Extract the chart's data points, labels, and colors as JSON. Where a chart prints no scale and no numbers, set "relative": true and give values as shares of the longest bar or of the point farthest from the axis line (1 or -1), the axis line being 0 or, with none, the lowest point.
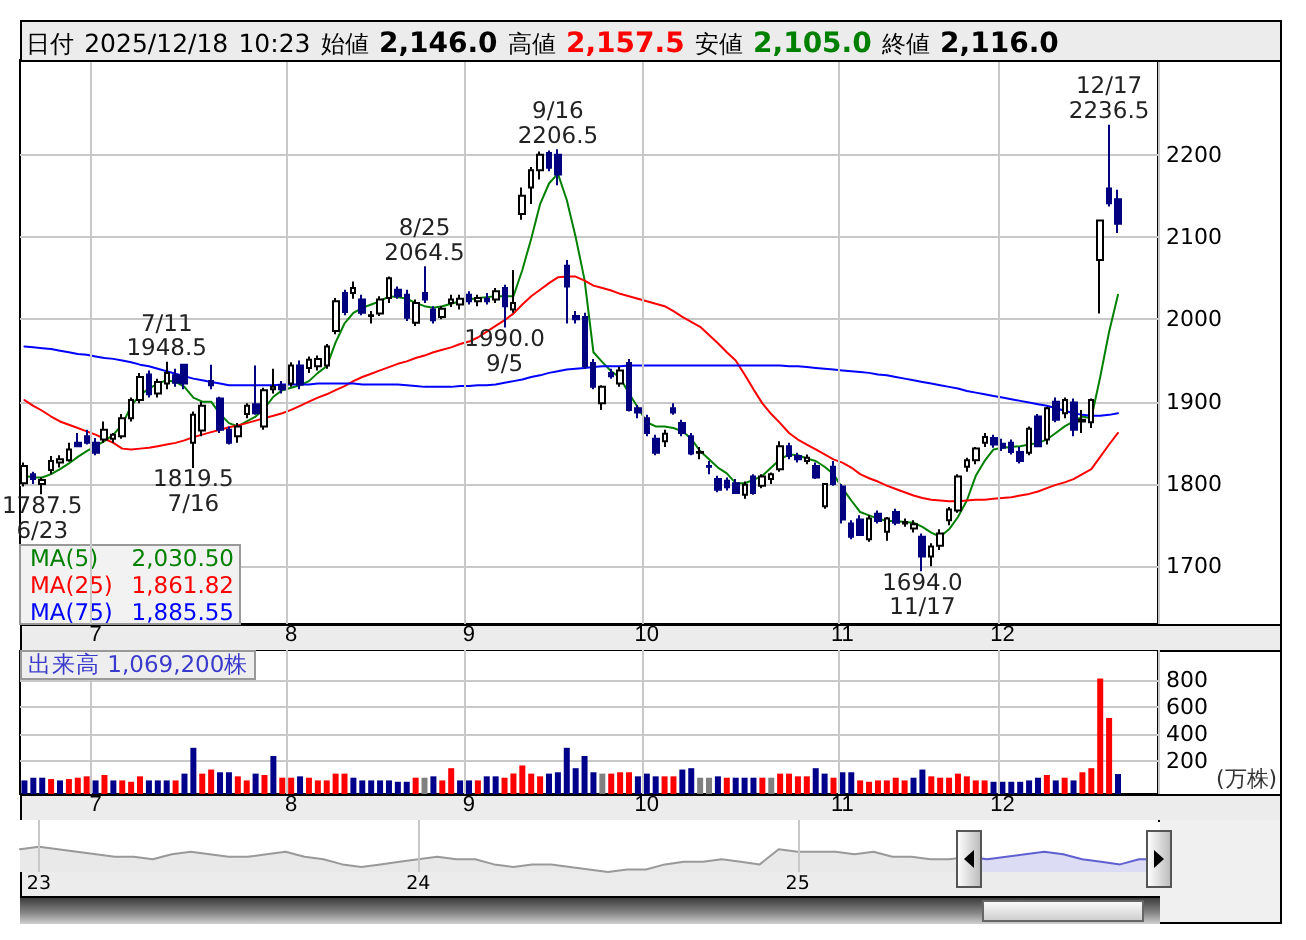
{
  "chart_data": [
    {
      "type": "candlestick",
      "title": "日付 2025/12/18 10:23 始値 2,146.0 高値 2,157.5 安値 2,105.0 終値 2,116.0",
      "categories": [
        null,
        null,
        null,
        null,
        null,
        null,
        null,
        null,
        "7",
        null,
        null,
        null,
        null,
        null,
        null,
        null,
        null,
        null,
        null,
        null,
        null,
        null,
        null,
        null,
        null,
        null,
        null,
        null,
        null,
        null,
        "8",
        null,
        null,
        null,
        null,
        null,
        null,
        null,
        null,
        null,
        null,
        null,
        null,
        null,
        null,
        null,
        null,
        null,
        null,
        null,
        "9",
        null,
        null,
        null,
        null,
        null,
        null,
        null,
        null,
        null,
        null,
        null,
        null,
        null,
        null,
        null,
        null,
        null,
        null,
        null,
        "10",
        null,
        null,
        null,
        null,
        null,
        null,
        null,
        null,
        null,
        null,
        null,
        null,
        null,
        null,
        null,
        null,
        null,
        null,
        null,
        null,
        null,
        "11",
        null,
        null,
        null,
        null,
        null,
        null,
        null,
        null,
        null,
        null,
        null,
        null,
        null,
        null,
        null,
        null,
        null,
        "12",
        null,
        null,
        null,
        null,
        null,
        null,
        null,
        null,
        null,
        null,
        null,
        null,
        null,
        null,
        null,
        null,
        null
      ],
      "ohlc": [
        [
          1801,
          1826,
          1797,
          1822
        ],
        [
          1812,
          1815,
          1800,
          1806
        ],
        [
          1800,
          1808,
          1787.5,
          1805
        ],
        [
          1817,
          1834,
          1812,
          1828
        ],
        [
          1826,
          1835,
          1820,
          1830
        ],
        [
          1829,
          1850,
          1827,
          1842
        ],
        [
          1850,
          1862,
          1845,
          1846
        ],
        [
          1858,
          1866,
          1848,
          1850
        ],
        [
          1850,
          1856,
          1835,
          1838
        ],
        [
          1854,
          1876,
          1850,
          1866
        ],
        [
          1855,
          1862,
          1850,
          1860
        ],
        [
          1858,
          1885,
          1855,
          1880
        ],
        [
          1880,
          1905,
          1876,
          1902
        ],
        [
          1902,
          1935,
          1898,
          1930
        ],
        [
          1933,
          1938,
          1905,
          1909
        ],
        [
          1910,
          1928,
          1905,
          1924
        ],
        [
          1922,
          1948.5,
          1915,
          1935
        ],
        [
          1932,
          1940,
          1918,
          1923
        ],
        [
          1945,
          1946,
          1915,
          1922
        ],
        [
          1850,
          1888,
          1819.5,
          1884
        ],
        [
          1865,
          1900,
          1858,
          1895
        ],
        [
          1925,
          1945,
          1915,
          1920
        ],
        [
          1904,
          1906,
          1862,
          1866
        ],
        [
          1866,
          1870,
          1848,
          1850
        ],
        [
          1858,
          1874,
          1850,
          1870
        ],
        [
          1885,
          1898,
          1880,
          1895
        ],
        [
          1897,
          1944,
          1884,
          1886
        ],
        [
          1870,
          1917,
          1866,
          1914
        ],
        [
          1915,
          1940,
          1910,
          1918
        ],
        [
          1920,
          1925,
          1910,
          1915
        ],
        [
          1922,
          1948,
          1918,
          1944
        ],
        [
          1944,
          1950,
          1915,
          1921
        ],
        [
          1941,
          1955,
          1935,
          1951
        ],
        [
          1943,
          1956,
          1938,
          1952
        ],
        [
          1944,
          1970,
          1940,
          1967
        ],
        [
          1986,
          2026,
          1982,
          2022
        ],
        [
          2032,
          2036,
          2005,
          2009
        ],
        [
          2032,
          2046,
          2025,
          2038
        ],
        [
          2024,
          2030,
          2005,
          2008
        ],
        [
          2004,
          2010,
          1995,
          2005
        ],
        [
          2007,
          2028,
          2004,
          2024
        ],
        [
          2026,
          2052,
          2020,
          2050
        ],
        [
          2036,
          2040,
          2025,
          2028
        ],
        [
          2030,
          2036,
          1998,
          2002
        ],
        [
          1996,
          2024,
          1992,
          2020
        ],
        [
          2032,
          2064.5,
          2020,
          2024
        ],
        [
          2012,
          2016,
          1995,
          1999
        ],
        [
          2003,
          2016,
          2000,
          2013
        ],
        [
          2020,
          2030,
          2015,
          2024
        ],
        [
          2018,
          2030,
          2012,
          2025
        ],
        [
          2030,
          2034,
          2018,
          2022
        ],
        [
          2022,
          2030,
          2016,
          2026
        ],
        [
          2025,
          2032,
          2018,
          2022
        ],
        [
          2024,
          2038,
          2020,
          2034
        ],
        [
          2038,
          2042,
          1990,
          2016
        ],
        [
          2012,
          2060,
          2008,
          2020
        ],
        [
          2128,
          2160,
          2121,
          2150
        ],
        [
          2160,
          2185,
          2140,
          2181
        ],
        [
          2181,
          2204,
          2170,
          2200
        ],
        [
          2202,
          2205,
          2180,
          2184
        ],
        [
          2200,
          2206.5,
          2163,
          2176
        ],
        [
          2065,
          2072,
          1995,
          2040
        ],
        [
          2004,
          2010,
          1995,
          2000
        ],
        [
          2003,
          2008,
          1940,
          1943
        ],
        [
          1947,
          1952,
          1915,
          1918
        ],
        [
          1898,
          1920,
          1890,
          1918
        ],
        [
          1935,
          1940,
          1928,
          1931
        ],
        [
          1922,
          1942,
          1918,
          1938
        ],
        [
          1947,
          1952,
          1888,
          1890
        ],
        [
          1892,
          1896,
          1880,
          1887
        ],
        [
          1880,
          1884,
          1858,
          1862
        ],
        [
          1855,
          1860,
          1835,
          1838
        ],
        [
          1852,
          1866,
          1845,
          1861
        ],
        [
          1892,
          1898,
          1884,
          1887
        ],
        [
          1874,
          1878,
          1858,
          1862
        ],
        [
          1858,
          1862,
          1835,
          1837
        ],
        [
          1838,
          1845,
          1830,
          1839
        ],
        [
          1822,
          1828,
          1812,
          1821
        ],
        [
          1806,
          1810,
          1790,
          1793
        ],
        [
          1804,
          1808,
          1792,
          1796
        ],
        [
          1801,
          1806,
          1788,
          1789
        ],
        [
          1787,
          1803,
          1782,
          1799
        ],
        [
          1809,
          1812,
          1787,
          1789
        ],
        [
          1798,
          1812,
          1795,
          1809
        ],
        [
          1806,
          1814,
          1800,
          1812
        ],
        [
          1818,
          1852,
          1815,
          1846
        ],
        [
          1846,
          1850,
          1830,
          1834
        ],
        [
          1834,
          1838,
          1826,
          1830
        ],
        [
          1828,
          1836,
          1824,
          1832
        ],
        [
          1822,
          1826,
          1806,
          1808
        ],
        [
          1773,
          1800,
          1770,
          1800
        ],
        [
          1821,
          1828,
          1798,
          1800
        ],
        [
          1797,
          1800,
          1752,
          1757
        ],
        [
          1752,
          1756,
          1733,
          1736
        ],
        [
          1757,
          1762,
          1737,
          1738
        ],
        [
          1733,
          1762,
          1730,
          1758
        ],
        [
          1764,
          1768,
          1752,
          1755
        ],
        [
          1742,
          1760,
          1731,
          1758
        ],
        [
          1766,
          1770,
          1750,
          1753
        ],
        [
          1752,
          1758,
          1748,
          1754
        ],
        [
          1746,
          1756,
          1741,
          1751
        ],
        [
          1736,
          1740,
          1694,
          1712
        ],
        [
          1712,
          1728,
          1700,
          1724
        ],
        [
          1725,
          1745,
          1720,
          1740
        ],
        [
          1756,
          1772,
          1750,
          1769
        ],
        [
          1768,
          1812,
          1765,
          1809
        ],
        [
          1821,
          1832,
          1815,
          1829
        ],
        [
          1829,
          1845,
          1824,
          1843
        ],
        [
          1850,
          1862,
          1845,
          1857
        ],
        [
          1856,
          1860,
          1844,
          1848
        ],
        [
          1849,
          1855,
          1840,
          1844
        ],
        [
          1850,
          1854,
          1836,
          1839
        ],
        [
          1839,
          1845,
          1825,
          1828
        ],
        [
          1838,
          1870,
          1835,
          1867
        ],
        [
          1882,
          1885,
          1845,
          1846
        ],
        [
          1854,
          1894,
          1848,
          1892
        ],
        [
          1900,
          1905,
          1875,
          1878
        ],
        [
          1886,
          1905,
          1880,
          1902
        ],
        [
          1899,
          1904,
          1858,
          1866
        ],
        [
          1876,
          1890,
          1862,
          1878
        ],
        [
          1875,
          1904,
          1868,
          1902
        ],
        [
          2072,
          2121,
          2007,
          2120
        ],
        [
          2159,
          2236.5,
          2137,
          2141
        ],
        [
          2146,
          2157.5,
          2105,
          2116
        ],
        null,
        null,
        null,
        null
      ],
      "colors": [
        "#000000",
        "#000080",
        "#000000",
        "#000000",
        "#000000",
        "#000000",
        "#000080",
        "#000080",
        "#000080",
        "#000000",
        "#000000",
        "#000000",
        "#000000",
        "#000000",
        "#000080",
        "#000000",
        "#000000",
        "#000080",
        "#000080",
        "#000000",
        "#000000",
        "#000080",
        "#000080",
        "#000080",
        "#000000",
        "#000000",
        "#000080",
        "#000000",
        "#000000",
        "#000080",
        "#000000",
        "#000080",
        "#000000",
        "#000000",
        "#000000",
        "#000000",
        "#000080",
        "#000000",
        "#000080",
        "#000000",
        "#000000",
        "#000000",
        "#000080",
        "#000080",
        "#000000",
        "#000080",
        "#000080",
        "#000000",
        "#000000",
        "#000000",
        "#000080",
        "#000000",
        "#000080",
        "#000000",
        "#000080",
        "#000000",
        "#000000",
        "#000000",
        "#000000",
        "#000080",
        "#000080",
        "#000080",
        "#000080",
        "#000080",
        "#000080",
        "#000000",
        "#000080",
        "#000000",
        "#000080",
        "#000080",
        "#000080",
        "#000080",
        "#000000",
        "#000080",
        "#000080",
        "#000080",
        "#000000",
        "#000080",
        "#000080",
        "#000080",
        "#000080",
        "#000000",
        "#000080",
        "#000000",
        "#000000",
        "#000000",
        "#000080",
        "#000080",
        "#000000",
        "#000080",
        "#000000",
        "#000080",
        "#000080",
        "#000080",
        "#000080",
        "#000000",
        "#000080",
        "#000000",
        "#000080",
        "#000000",
        "#000000",
        "#000080",
        "#000000",
        "#000000",
        "#000000",
        "#000000",
        "#000000",
        "#000000",
        "#000000",
        "#000080",
        "#000080",
        "#000080",
        "#000080",
        "#000000",
        "#000080",
        "#000000",
        "#000080",
        "#000000",
        "#000080",
        "#000000",
        "#000000",
        "#000000",
        "#000080",
        "#000080",
        null,
        null,
        null,
        null
      ],
      "series": [
        {
          "name": "MA(5) 2,030.50",
          "type": "line",
          "color": "#008000",
          "values": [
            1810,
            1808,
            1808,
            1812,
            1818,
            1825,
            1833,
            1840,
            1846,
            1852,
            1860,
            1872,
            1895,
            1908,
            1916,
            1922,
            1926,
            1924,
            1918,
            1905,
            1900,
            1900,
            1885,
            1874,
            1870,
            1876,
            1882,
            1892,
            1906,
            1914,
            1917,
            1920,
            1925,
            1935,
            1943,
            1972,
            1995,
            2008,
            2014,
            2018,
            2022,
            2028,
            2027,
            2025,
            2020,
            2016,
            2014,
            2016,
            2019,
            2022,
            2024,
            2026,
            2027,
            2028,
            2028,
            2028,
            2060,
            2098,
            2140,
            2165,
            2177,
            2145,
            2100,
            2048,
            1960,
            1948,
            1937,
            1929,
            1910,
            1893,
            1875,
            1870,
            1870,
            1868,
            1864,
            1855,
            1840,
            1830,
            1820,
            1813,
            1801,
            1801,
            1805,
            1810,
            1820,
            1830,
            1836,
            1835,
            1831,
            1828,
            1821,
            1812,
            1795,
            1780,
            1766,
            1762,
            1758,
            1755,
            1755,
            1754,
            1753,
            1748,
            1741,
            1736,
            1745,
            1760,
            1780,
            1810,
            1828,
            1842,
            1844,
            1845,
            1846,
            1848,
            1850,
            1854,
            1862,
            1870,
            1876,
            1882,
            1880,
            1930,
            1985,
            2030,
            null,
            null,
            null,
            null
          ]
        },
        {
          "name": "MA(25) 1,861.82",
          "type": "line",
          "color": "#ff0000",
          "values": [
            1902,
            1895,
            1889,
            1882,
            1876,
            1872,
            1868,
            1864,
            1860,
            1855,
            1850,
            1843,
            1842,
            1843,
            1844,
            1846,
            1848,
            1850,
            1853,
            1857,
            1860,
            1863,
            1866,
            1869,
            1871,
            1874,
            1877,
            1880,
            1883,
            1886,
            1890,
            1895,
            1900,
            1905,
            1909,
            1914,
            1919,
            1925,
            1930,
            1934,
            1938,
            1942,
            1946,
            1949,
            1953,
            1956,
            1960,
            1963,
            1966,
            1970,
            1973,
            1978,
            1985,
            1992,
            1999,
            2007,
            2018,
            2028,
            2036,
            2044,
            2051,
            2052,
            2052,
            2047,
            2041,
            2038,
            2035,
            2031,
            2028,
            2025,
            2022,
            2019,
            2016,
            2010,
            2003,
            1997,
            1991,
            1981,
            1971,
            1960,
            1950,
            1933,
            1915,
            1898,
            1885,
            1874,
            1862,
            1854,
            1848,
            1842,
            1836,
            1830,
            1826,
            1820,
            1812,
            1807,
            1803,
            1798,
            1794,
            1790,
            1786,
            1783,
            1781,
            1780,
            1779,
            1779,
            1780,
            1781,
            1781,
            1782,
            1783,
            1784,
            1786,
            1788,
            1791,
            1795,
            1799,
            1802,
            1806,
            1812,
            1818,
            1833,
            1848,
            1862,
            null,
            null,
            null,
            null
          ]
        },
        {
          "name": "MA(75) 1,885.55",
          "type": "line",
          "color": "#0000ff",
          "values": [
            1967,
            1966,
            1965,
            1964,
            1962,
            1960,
            1958,
            1957,
            1955,
            1953,
            1952,
            1950,
            1948,
            1945,
            1943,
            1940,
            1937,
            1934,
            1931,
            1928,
            1926,
            1924,
            1922,
            1920,
            1920,
            1920,
            1920,
            1920,
            1920,
            1921,
            1921,
            1921,
            1921,
            1922,
            1922,
            1922,
            1922,
            1922,
            1921,
            1921,
            1921,
            1921,
            1921,
            1920,
            1919,
            1918,
            1918,
            1918,
            1918,
            1919,
            1919,
            1920,
            1920,
            1921,
            1923,
            1925,
            1927,
            1930,
            1932,
            1935,
            1937,
            1939,
            1940,
            1941,
            1942,
            1943,
            1943,
            1943,
            1944,
            1944,
            1944,
            1944,
            1944,
            1944,
            1944,
            1944,
            1944,
            1944,
            1944,
            1944,
            1944,
            1944,
            1944,
            1944,
            1944,
            1944,
            1943,
            1943,
            1942,
            1941,
            1940,
            1939,
            1938,
            1937,
            1936,
            1935,
            1933,
            1932,
            1930,
            1928,
            1926,
            1924,
            1922,
            1920,
            1918,
            1916,
            1913,
            1911,
            1909,
            1907,
            1905,
            1903,
            1901,
            1899,
            1897,
            1895,
            1892,
            1889,
            1886,
            1884,
            1883,
            1883,
            1884,
            1886,
            null,
            null,
            null,
            null
          ]
        }
      ],
      "ylim": [
        1630,
        2315
      ],
      "yticks": [
        1700,
        1800,
        1900,
        2000,
        2100,
        2200
      ],
      "grid": true,
      "legend": "bottom left",
      "marker": "none",
      "annotations": [
        {
          "text": "1787.5\n6/23",
          "y": 1787.5
        },
        {
          "text": "7/11\n1948.5",
          "y": 1948.5
        },
        {
          "text": "1819.5\n7/16",
          "y": 1819.5
        },
        {
          "text": "8/25\n2064.5",
          "y": 2064.5
        },
        {
          "text": "1990.0\n9/5",
          "y": 1990
        },
        {
          "text": "9/16\n2206.5",
          "y": 2206.5
        },
        {
          "text": "1694.0\n11/17",
          "y": 1694
        },
        {
          "text": "12/17\n2236.5",
          "y": 2236.5
        }
      ]
    },
    {
      "type": "bar",
      "title": "出来高 1,069,200株",
      "ylabel": "(万株)",
      "categories": [
        null,
        null,
        null,
        null,
        null,
        null,
        null,
        null,
        "7",
        null,
        null,
        null,
        null,
        null,
        null,
        null,
        null,
        null,
        null,
        null,
        null,
        null,
        null,
        null,
        null,
        null,
        null,
        null,
        null,
        null,
        "8",
        null,
        null,
        null,
        null,
        null,
        null,
        null,
        null,
        null,
        null,
        null,
        null,
        null,
        null,
        null,
        null,
        null,
        null,
        null,
        "9",
        null,
        null,
        null,
        null,
        null,
        null,
        null,
        null,
        null,
        null,
        null,
        null,
        null,
        null,
        null,
        null,
        null,
        null,
        null,
        "10",
        null,
        null,
        null,
        null,
        null,
        null,
        null,
        null,
        null,
        null,
        null,
        null,
        null,
        null,
        null,
        null,
        null,
        null,
        null,
        null,
        null,
        "11",
        null,
        null,
        null,
        null,
        null,
        null,
        null,
        null,
        null,
        null,
        null,
        null,
        null,
        null,
        null,
        null,
        null,
        "12",
        null,
        null,
        null,
        null,
        null,
        null,
        null,
        null,
        null,
        null,
        null,
        null,
        null,
        null,
        null,
        null,
        null
      ],
      "values": [
        60,
        80,
        80,
        70,
        60,
        70,
        80,
        90,
        60,
        100,
        60,
        60,
        50,
        90,
        60,
        60,
        60,
        60,
        110,
        300,
        110,
        140,
        120,
        120,
        90,
        60,
        110,
        100,
        240,
        80,
        80,
        90,
        80,
        60,
        60,
        110,
        110,
        80,
        60,
        60,
        60,
        60,
        50,
        50,
        80,
        80,
        90,
        60,
        150,
        60,
        60,
        60,
        90,
        90,
        80,
        110,
        170,
        110,
        90,
        110,
        120,
        300,
        150,
        240,
        120,
        110,
        110,
        120,
        120,
        90,
        110,
        90,
        90,
        90,
        140,
        150,
        80,
        80,
        90,
        80,
        80,
        80,
        80,
        80,
        80,
        110,
        110,
        90,
        90,
        150,
        110,
        80,
        120,
        120,
        60,
        50,
        60,
        60,
        80,
        60,
        80,
        140,
        90,
        80,
        80,
        110,
        90,
        60,
        60,
        50,
        50,
        50,
        50,
        60,
        80,
        100,
        60,
        80,
        60,
        120,
        150,
        810,
        520,
        106.92,
        null,
        null,
        null,
        null
      ],
      "colors": [
        "#00008b",
        "#00008b",
        "#00008b",
        "#ff0000",
        "#00008b",
        "#ff0000",
        "#ff0000",
        "#ff0000",
        "#00008b",
        "#ff0000",
        "#00008b",
        "#ff0000",
        "#ff0000",
        "#ff0000",
        "#00008b",
        "#00008b",
        "#00008b",
        "#ff0000",
        "#00008b",
        "#00008b",
        "#ff0000",
        "#ff0000",
        "#00008b",
        "#00008b",
        "#ff0000",
        "#ff0000",
        "#00008b",
        "#ff0000",
        "#00008b",
        "#ff0000",
        "#ff0000",
        "#00008b",
        "#ff0000",
        "#ff0000",
        "#ff0000",
        "#ff0000",
        "#ff0000",
        "#00008b",
        "#00008b",
        "#00008b",
        "#00008b",
        "#00008b",
        "#00008b",
        "#00008b",
        "#ff0000",
        "#808080",
        "#00008b",
        "#ff0000",
        "#ff0000",
        "#00008b",
        "#00008b",
        "#ff0000",
        "#00008b",
        "#00008b",
        "#ff0000",
        "#ff0000",
        "#ff0000",
        "#ff0000",
        "#ff0000",
        "#00008b",
        "#00008b",
        "#00008b",
        "#00008b",
        "#00008b",
        "#00008b",
        "#808080",
        "#ff0000",
        "#ff0000",
        "#ff0000",
        "#00008b",
        "#00008b",
        "#00008b",
        "#ff0000",
        "#ff0000",
        "#00008b",
        "#00008b",
        "#808080",
        "#808080",
        "#00008b",
        "#ff0000",
        "#00008b",
        "#00008b",
        "#00008b",
        "#ff0000",
        "#808080",
        "#ff0000",
        "#ff0000",
        "#ff0000",
        "#ff0000",
        "#00008b",
        "#00008b",
        "#ff0000",
        "#00008b",
        "#00008b",
        "#ff0000",
        "#ff0000",
        "#ff0000",
        "#ff0000",
        "#ff0000",
        "#ff0000",
        "#00008b",
        "#00008b",
        "#ff0000",
        "#ff0000",
        "#ff0000",
        "#ff0000",
        "#ff0000",
        "#ff0000",
        "#ff0000",
        "#00008b",
        "#00008b",
        "#00008b",
        "#00008b",
        "#00008b",
        "#00008b",
        "#ff0000",
        "#00008b",
        "#ff0000",
        "#00008b",
        "#ff0000",
        "#ff0000",
        "#ff0000",
        "#ff0000",
        "#00008b",
        null,
        null,
        null,
        null
      ],
      "ylim": [
        -40,
        1020
      ],
      "yticks": [
        200,
        400,
        600,
        800
      ],
      "grid": true
    },
    {
      "type": "area",
      "relative": true,
      "categories": [
        null,
        "23",
        null,
        null,
        null,
        null,
        null,
        null,
        null,
        null,
        null,
        null,
        null,
        null,
        null,
        null,
        null,
        null,
        null,
        null,
        null,
        "24",
        null,
        null,
        null,
        null,
        null,
        null,
        null,
        null,
        null,
        null,
        null,
        null,
        null,
        null,
        null,
        null,
        null,
        null,
        null,
        "25",
        null,
        null,
        null,
        null,
        null,
        null,
        null,
        null,
        null,
        null,
        null,
        null,
        null,
        null,
        null,
        null,
        null,
        null,
        null
      ],
      "series": [
        {
          "color": "#999999",
          "values": [
            0.9,
            1,
            0.9,
            0.8,
            0.7,
            0.6,
            0.6,
            0.5,
            0.7,
            0.8,
            0.7,
            0.6,
            0.6,
            0.7,
            0.8,
            0.6,
            0.5,
            0.3,
            0.2,
            0.3,
            0.4,
            0.5,
            0.6,
            0.5,
            0.5,
            0.3,
            0.2,
            0.3,
            0.3,
            0.2,
            0.1,
            0,
            0.1,
            0.1,
            0.3,
            0.4,
            0.4,
            0.5,
            0.4,
            0.3,
            0.9,
            0.8,
            0.8,
            0.8,
            0.7,
            0.8,
            0.6,
            0.6,
            0.5,
            0.5,
            0.6,
            null,
            null,
            null,
            null,
            null,
            null,
            null,
            null,
            null,
            null
          ]
        },
        {
          "color": "#6060d0",
          "values": [
            null,
            null,
            null,
            null,
            null,
            null,
            null,
            null,
            null,
            null,
            null,
            null,
            null,
            null,
            null,
            null,
            null,
            null,
            null,
            null,
            null,
            null,
            null,
            null,
            null,
            null,
            null,
            null,
            null,
            null,
            null,
            null,
            null,
            null,
            null,
            null,
            null,
            null,
            null,
            null,
            null,
            null,
            null,
            null,
            null,
            null,
            null,
            null,
            null,
            null,
            0.6,
            0.5,
            0.6,
            0.7,
            0.8,
            0.7,
            0.5,
            0.4,
            0.3,
            0.5,
            0.5
          ]
        }
      ],
      "grid": "x",
      "tick_labels": "x",
      "marker": "none"
    }
  ]
}
